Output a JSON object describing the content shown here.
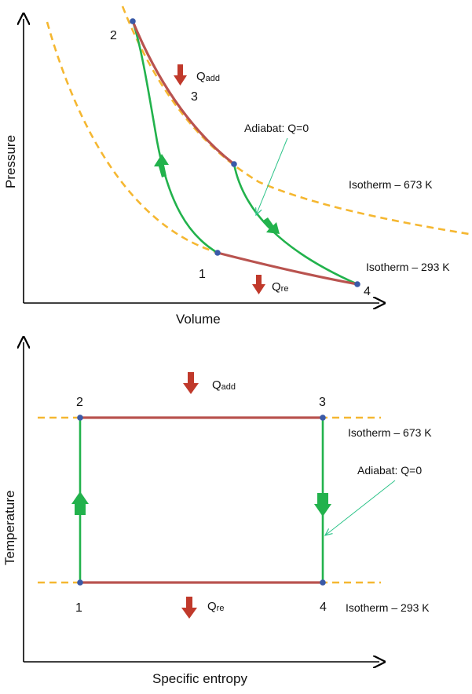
{
  "pv_diagram": {
    "x_axis_label": "Volume",
    "y_axis_label": "Pressure",
    "state_labels": {
      "s1": "1",
      "s2": "2",
      "s3": "3",
      "s4": "4"
    },
    "q_add": {
      "main": "Q",
      "sub": "add"
    },
    "q_re": {
      "main": "Q",
      "sub": "re"
    },
    "adiabat_label": "Adiabat: Q=0",
    "isotherm_hot_label": "Isotherm – 673 K",
    "isotherm_cold_label": "Isotherm – 293 K"
  },
  "ts_diagram": {
    "x_axis_label": "Specific entropy",
    "y_axis_label": "Temperature",
    "state_labels": {
      "s1": "1",
      "s2": "2",
      "s3": "3",
      "s4": "4"
    },
    "q_add": {
      "main": "Q",
      "sub": "add"
    },
    "q_re": {
      "main": "Q",
      "sub": "re"
    },
    "adiabat_label": "Adiabat: Q=0",
    "isotherm_hot_label": "Isotherm – 673 K",
    "isotherm_cold_label": "Isotherm – 293 K"
  },
  "colors": {
    "axis": "#000000",
    "isotherm_dashed": "#f5b731",
    "adiabat_green": "#22b24c",
    "isotherm_process": "#b9534f",
    "heat_arrow": "#c0392b",
    "state_point": "#3a5aa8",
    "pointer_line": "#2fc48a"
  }
}
